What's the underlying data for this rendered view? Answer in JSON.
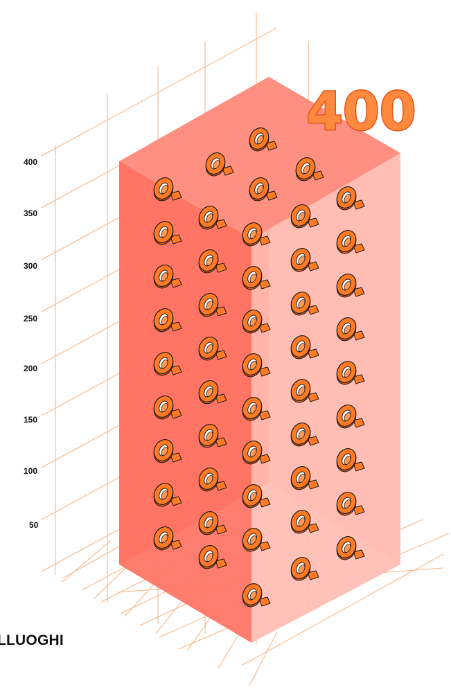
{
  "headline": "400",
  "caption": "LLUOGHI",
  "axis": {
    "ticks": [
      "400",
      "350",
      "300",
      "250",
      "200",
      "150",
      "100",
      "50"
    ]
  },
  "colors": {
    "block_left": "#ff4a2e",
    "block_front": "#ff8a78",
    "block_right": "#ffb8ae",
    "block_top": "#ff9282",
    "grid": "#f6b27e",
    "icon_fill": "#ff7a24",
    "icon_stroke": "#1a1a1a"
  },
  "icons": {
    "name": "ring-icon",
    "count": 52
  }
}
